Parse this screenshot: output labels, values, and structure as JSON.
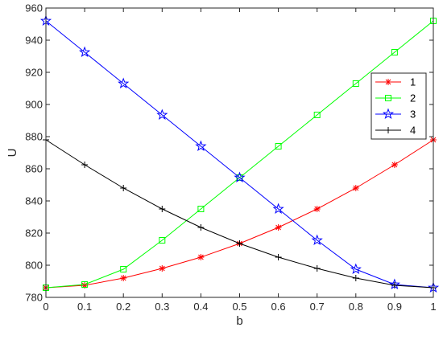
{
  "chart_data": {
    "type": "line",
    "xlabel": "b",
    "ylabel": "U",
    "xlim": [
      0,
      1
    ],
    "ylim": [
      780,
      960
    ],
    "xticks": [
      "0",
      "0.1",
      "0.2",
      "0.3",
      "0.4",
      "0.5",
      "0.6",
      "0.7",
      "0.8",
      "0.9",
      "1"
    ],
    "yticks": [
      "780",
      "800",
      "820",
      "840",
      "860",
      "880",
      "900",
      "920",
      "940",
      "960"
    ],
    "grid": false,
    "legend_position": "top-right",
    "x": [
      0,
      0.1,
      0.2,
      0.3,
      0.4,
      0.5,
      0.6,
      0.7,
      0.8,
      0.9,
      1
    ],
    "series": [
      {
        "name": "1",
        "color": "#ff0000",
        "marker": "asterisk",
        "values": [
          786,
          787.5,
          792,
          798,
          805,
          813.5,
          823.5,
          835,
          848,
          862.5,
          878
        ]
      },
      {
        "name": "2",
        "color": "#00ff00",
        "marker": "square",
        "values": [
          786,
          788,
          797.5,
          815.5,
          835,
          854.5,
          874,
          893.5,
          913,
          932.5,
          952
        ]
      },
      {
        "name": "3",
        "color": "#0000ff",
        "marker": "star",
        "values": [
          952,
          932.5,
          913,
          893.5,
          874,
          854.5,
          835,
          815.5,
          797.5,
          788,
          786
        ]
      },
      {
        "name": "4",
        "color": "#000000",
        "marker": "plus",
        "values": [
          878,
          862.5,
          848,
          835,
          823.5,
          813.5,
          805,
          798,
          792,
          787.5,
          786
        ]
      }
    ]
  }
}
